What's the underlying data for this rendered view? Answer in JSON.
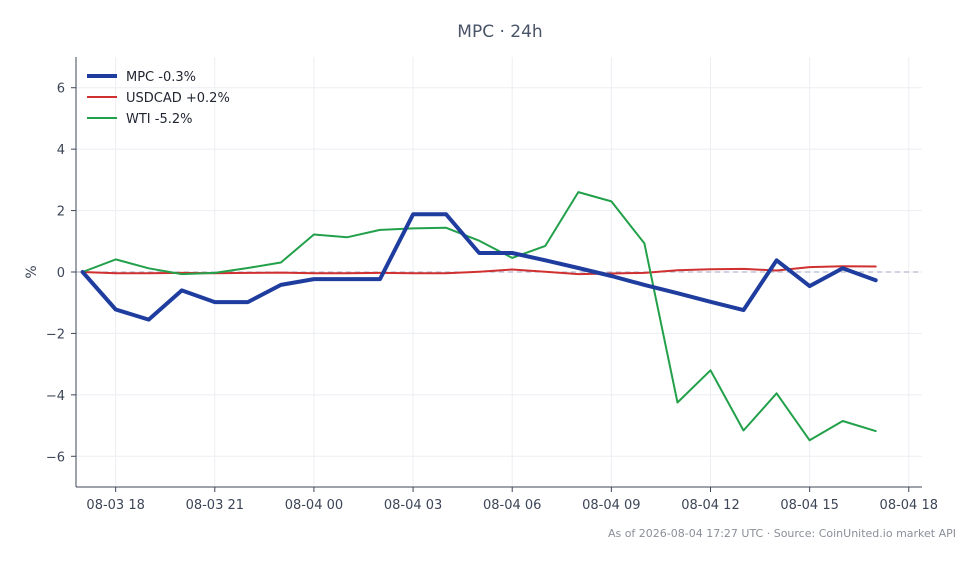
{
  "chart_data": {
    "type": "line",
    "title": "MPC · 24h",
    "xlabel": "",
    "ylabel": "%",
    "ylim": [
      -7,
      7
    ],
    "yticks": [
      6,
      4,
      2,
      0,
      -2,
      -4,
      -6
    ],
    "ytick_labels": [
      "6",
      "4",
      "2",
      "0",
      "−2",
      "−4",
      "−6"
    ],
    "xlim": [
      "08-03 16:48",
      "08-04 18:24"
    ],
    "xticks": [
      "08-03 18:00",
      "08-03 21:00",
      "08-04 00:00",
      "08-04 03:00",
      "08-04 06:00",
      "08-04 09:00",
      "08-04 12:00",
      "08-04 15:00",
      "08-04 18:00"
    ],
    "xtick_labels": [
      "08-03 18",
      "08-03 21",
      "08-04 00",
      "08-04 03",
      "08-04 06",
      "08-04 09",
      "08-04 12",
      "08-04 15",
      "08-04 18"
    ],
    "grid": true,
    "zero_line": true,
    "legend_position": "top-left",
    "x": [
      "08-03 17:00",
      "08-03 18:00",
      "08-03 19:00",
      "08-03 20:00",
      "08-03 21:00",
      "08-03 22:00",
      "08-03 23:00",
      "08-04 00:00",
      "08-04 01:00",
      "08-04 02:00",
      "08-04 03:00",
      "08-04 04:00",
      "08-04 05:00",
      "08-04 06:00",
      "08-04 07:00",
      "08-04 08:00",
      "08-04 09:00",
      "08-04 10:00",
      "08-04 11:00",
      "08-04 12:00",
      "08-04 13:00",
      "08-04 14:00",
      "08-04 15:00",
      "08-04 16:00",
      "08-04 17:00"
    ],
    "series": [
      {
        "name": "MPC -0.3%",
        "color": "#1f3d9e",
        "width": 4,
        "values": [
          0.0,
          -1.22,
          -1.55,
          -0.6,
          -0.98,
          -0.98,
          -0.42,
          -0.23,
          -0.23,
          -0.23,
          1.88,
          1.88,
          0.62,
          0.62,
          0.38,
          0.13,
          -0.13,
          -0.42,
          -0.69,
          -0.97,
          -1.24,
          0.38,
          -0.46,
          0.12,
          -0.27
        ]
      },
      {
        "name": "USDCAD +0.2%",
        "color": "#d03030",
        "width": 2,
        "values": [
          0.0,
          -0.04,
          -0.04,
          -0.03,
          -0.04,
          -0.03,
          -0.02,
          -0.04,
          -0.04,
          -0.03,
          -0.04,
          -0.04,
          0.01,
          0.08,
          0.01,
          -0.07,
          -0.05,
          -0.03,
          0.06,
          0.09,
          0.1,
          0.05,
          0.16,
          0.19,
          0.18
        ]
      },
      {
        "name": "WTI -5.2%",
        "color": "#22a04a",
        "width": 2,
        "values": [
          0.0,
          0.41,
          0.12,
          -0.07,
          -0.03,
          0.13,
          0.31,
          1.22,
          1.13,
          1.37,
          1.42,
          1.44,
          1.02,
          0.46,
          0.85,
          2.6,
          2.3,
          0.93,
          -4.25,
          -3.2,
          -5.16,
          -3.95,
          -5.48,
          -4.85,
          -5.18
        ]
      }
    ]
  },
  "footer": "As of 2026-08-04 17:27 UTC · Source: CoinUnited.io market API"
}
